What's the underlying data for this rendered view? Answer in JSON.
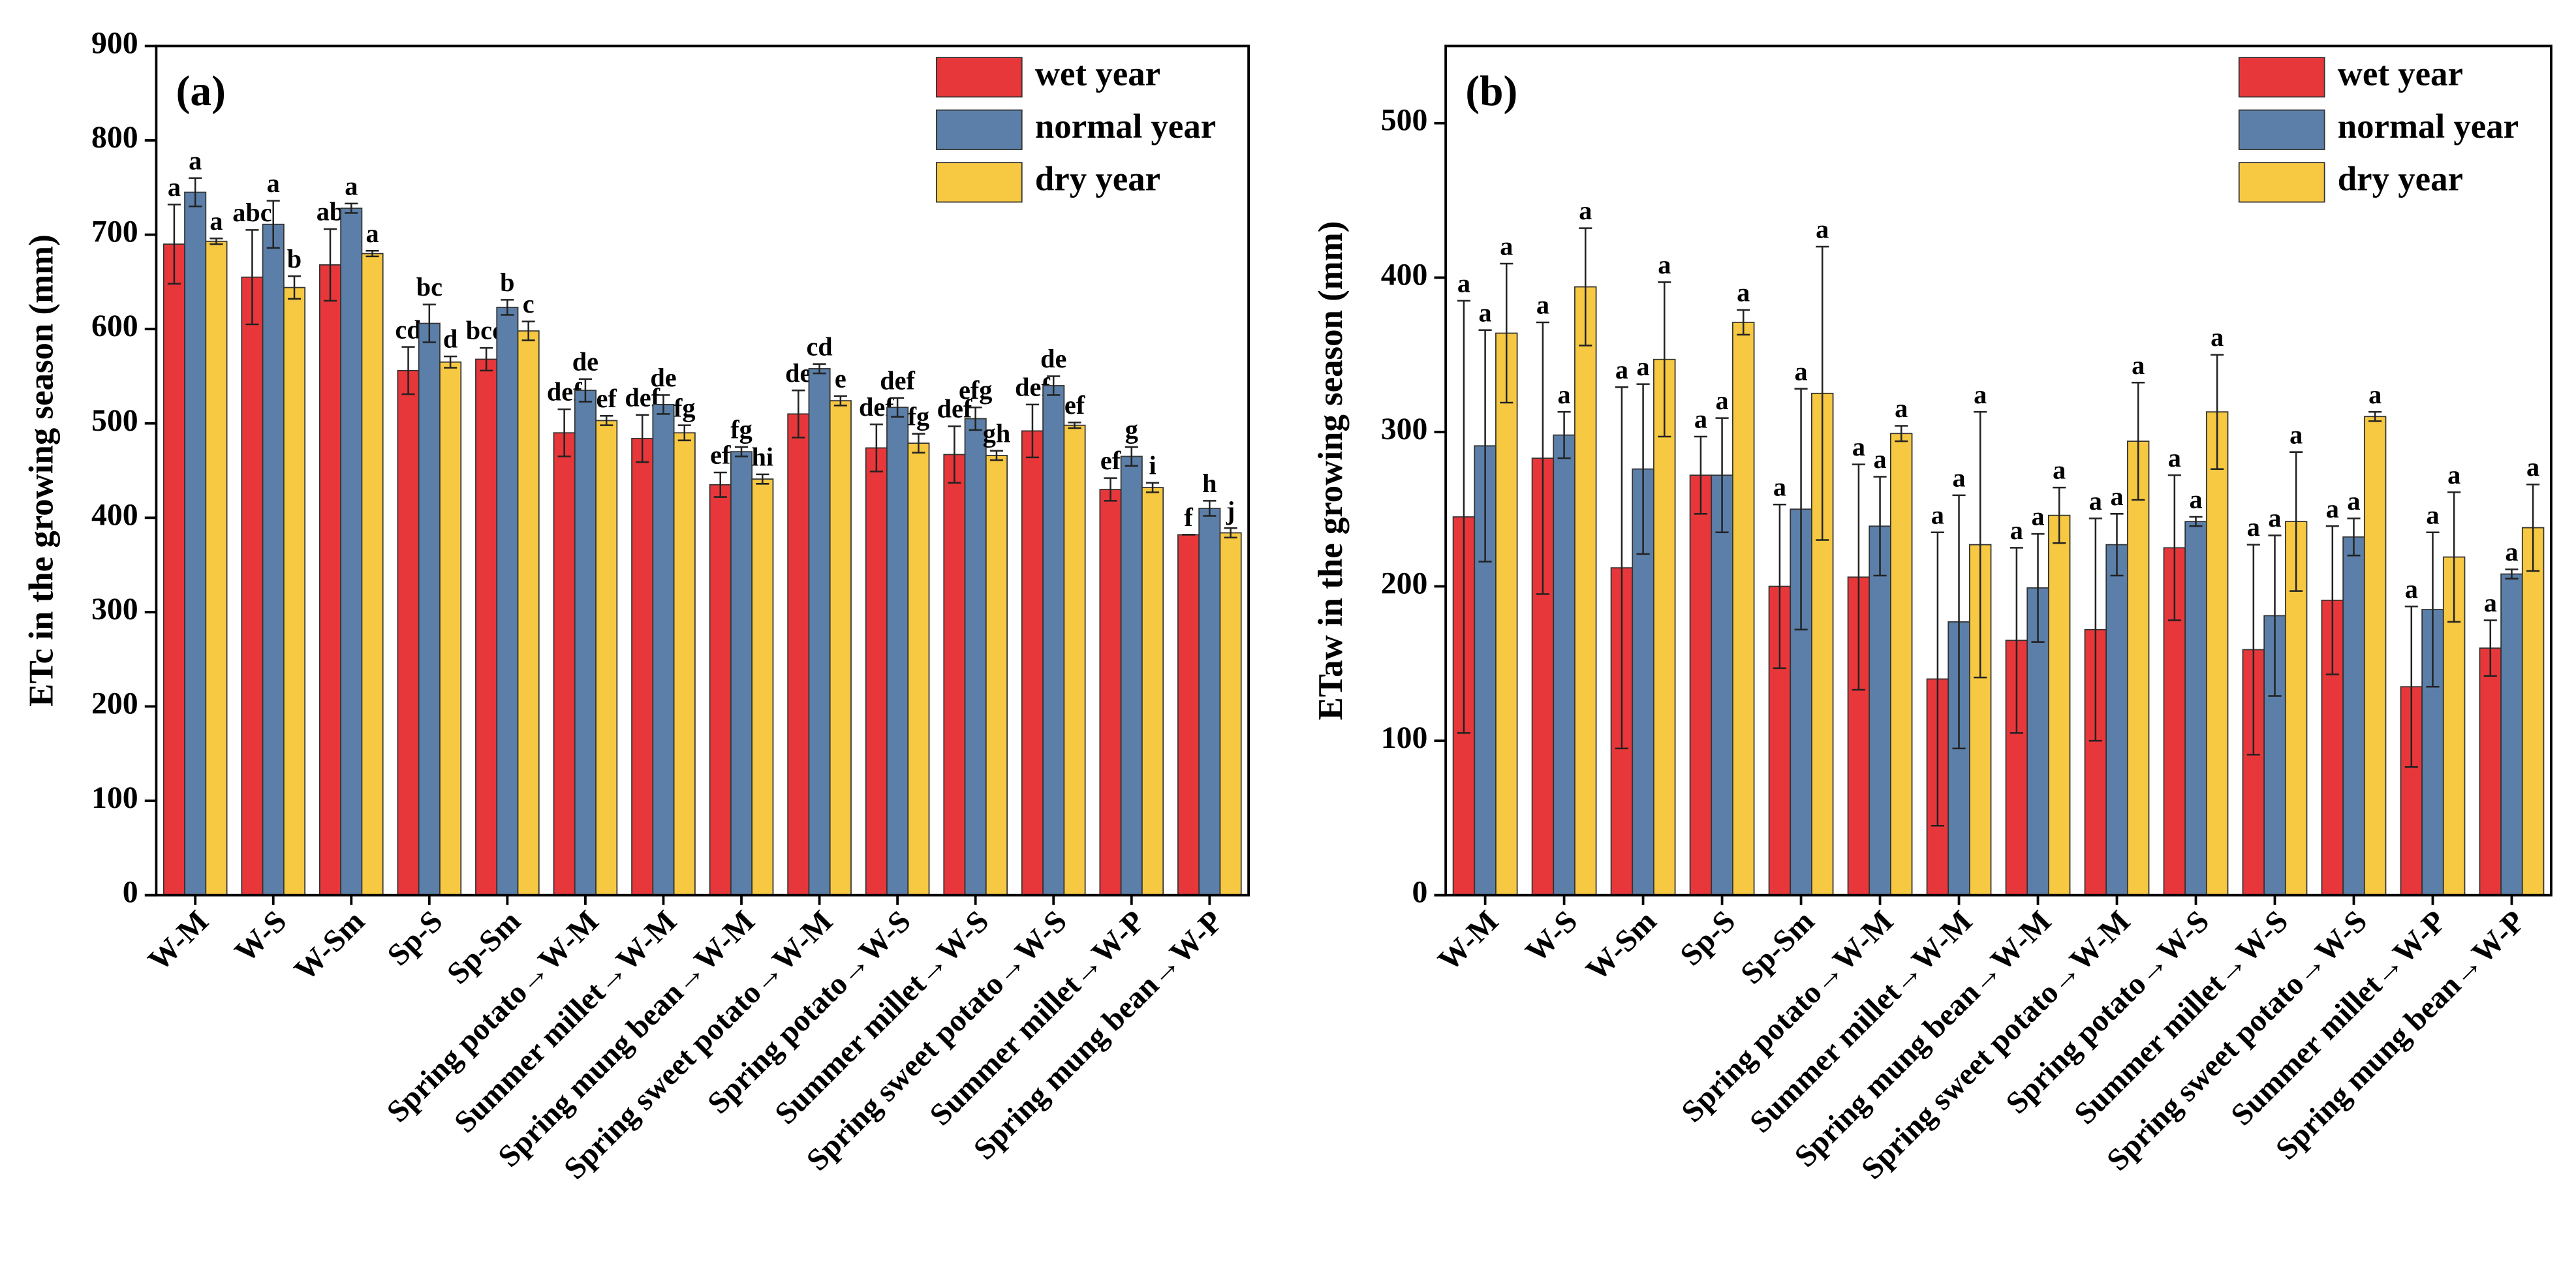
{
  "chart_data": [
    {
      "type": "bar",
      "panel_label": "(a)",
      "ylabel": "ETc in the growing season (mm)",
      "categories": [
        "W-M",
        "W-S",
        "W-Sm",
        "Sp-S",
        "Sp-Sm",
        "Spring potato→W-M",
        "Summer millet→W-M",
        "Spring mung bean→W-M",
        "Spring sweet potato→W-M",
        "Spring potato→W-S",
        "Summer millet→W-S",
        "Spring sweet potato→W-S",
        "Summer millet→W-P",
        "Spring mung bean→W-P"
      ],
      "series": [
        {
          "name": "wet year",
          "color": "#e8373a",
          "values": [
            690,
            655,
            668,
            556,
            568,
            490,
            484,
            435,
            510,
            474,
            467,
            492,
            430,
            382
          ],
          "errors": [
            42,
            50,
            38,
            25,
            12,
            25,
            25,
            13,
            25,
            25,
            30,
            28,
            12,
            0
          ],
          "labels": [
            "a",
            "abc",
            "ab",
            "cd",
            "bcd",
            "def",
            "def",
            "ef",
            "de",
            "def",
            "def",
            "def",
            "ef",
            "f"
          ]
        },
        {
          "name": "normal year",
          "color": "#5b7fa8",
          "values": [
            745,
            711,
            728,
            606,
            623,
            535,
            520,
            470,
            558,
            517,
            505,
            540,
            465,
            410
          ],
          "errors": [
            15,
            25,
            5,
            20,
            8,
            12,
            10,
            5,
            5,
            10,
            12,
            10,
            10,
            8
          ],
          "labels": [
            "a",
            "a",
            "a",
            "bc",
            "b",
            "de",
            "de",
            "fg",
            "cd",
            "def",
            "efg",
            "de",
            "g",
            "h"
          ]
        },
        {
          "name": "dry year",
          "color": "#f7c943",
          "values": [
            693,
            644,
            680,
            565,
            598,
            503,
            490,
            441,
            524,
            479,
            466,
            498,
            432,
            384
          ],
          "errors": [
            3,
            12,
            3,
            6,
            10,
            5,
            8,
            5,
            5,
            10,
            5,
            3,
            5,
            5
          ],
          "labels": [
            "a",
            "b",
            "a",
            "d",
            "c",
            "ef",
            "fg",
            "hi",
            "e",
            "fg",
            "gh",
            "ef",
            "i",
            "j"
          ]
        }
      ],
      "ylim": [
        0,
        900
      ],
      "yticks": [
        0,
        100,
        200,
        300,
        400,
        500,
        600,
        700,
        800,
        900
      ]
    },
    {
      "type": "bar",
      "panel_label": "(b)",
      "ylabel": "ETaw in the growing season (mm)",
      "categories": [
        "W-M",
        "W-S",
        "W-Sm",
        "Sp-S",
        "Sp-Sm",
        "Spring potato→W-M",
        "Summer millet→W-M",
        "Spring mung bean→W-M",
        "Spring sweet potato→W-M",
        "Spring potato→W-S",
        "Summer millet→W-S",
        "Spring sweet potato→W-S",
        "Summer millet→W-P",
        "Spring mung bean→W-P"
      ],
      "series": [
        {
          "name": "wet year",
          "color": "#e8373a",
          "values": [
            245,
            283,
            212,
            272,
            200,
            206,
            140,
            165,
            172,
            225,
            159,
            191,
            135,
            160
          ],
          "errors": [
            140,
            88,
            117,
            25,
            53,
            73,
            95,
            60,
            72,
            47,
            68,
            48,
            52,
            18
          ],
          "labels": [
            "a",
            "a",
            "a",
            "a",
            "a",
            "a",
            "a",
            "a",
            "a",
            "a",
            "a",
            "a",
            "a",
            "a"
          ]
        },
        {
          "name": "normal year",
          "color": "#5b7fa8",
          "values": [
            291,
            298,
            276,
            272,
            250,
            239,
            177,
            199,
            227,
            242,
            181,
            232,
            185,
            208
          ],
          "errors": [
            75,
            15,
            55,
            37,
            78,
            32,
            82,
            35,
            20,
            3,
            52,
            12,
            50,
            3
          ],
          "labels": [
            "a",
            "a",
            "a",
            "a",
            "a",
            "a",
            "a",
            "a",
            "a",
            "a",
            "a",
            "a",
            "a",
            "a"
          ]
        },
        {
          "name": "dry year",
          "color": "#f7c943",
          "values": [
            364,
            394,
            347,
            371,
            325,
            299,
            227,
            246,
            294,
            313,
            242,
            310,
            219,
            238
          ],
          "errors": [
            45,
            38,
            50,
            8,
            95,
            5,
            86,
            18,
            38,
            37,
            45,
            3,
            42,
            28
          ],
          "labels": [
            "a",
            "a",
            "a",
            "a",
            "a",
            "a",
            "a",
            "a",
            "a",
            "a",
            "a",
            "a",
            "a",
            "a"
          ]
        }
      ],
      "ylim": [
        0,
        550
      ],
      "yticks": [
        0,
        100,
        200,
        300,
        400,
        500
      ]
    }
  ]
}
